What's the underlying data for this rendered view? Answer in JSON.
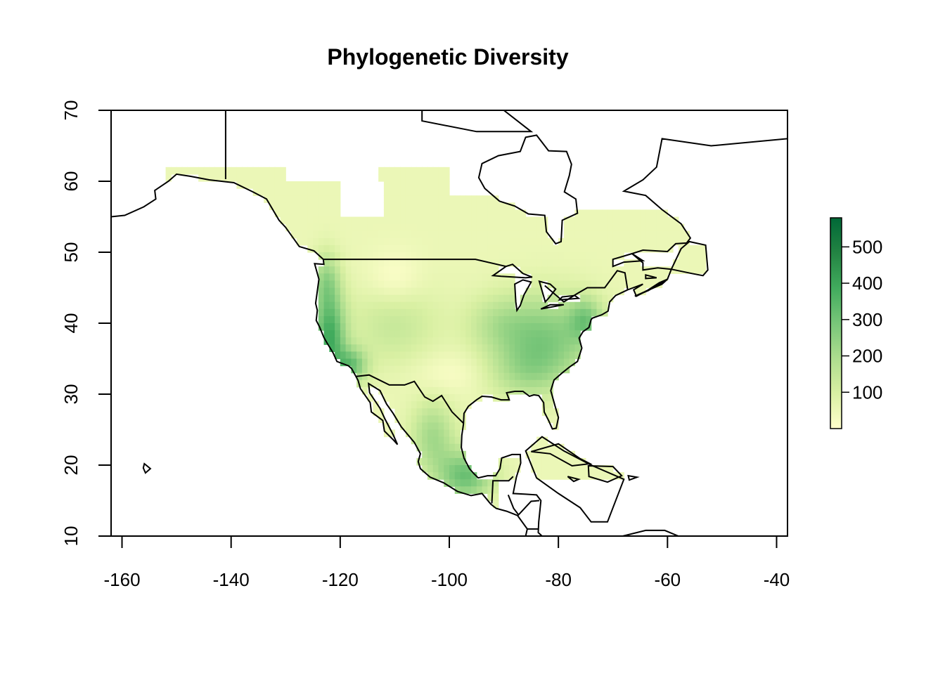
{
  "title": "Phylogenetic Diversity",
  "x_axis": {
    "ticks": [
      "-160",
      "-140",
      "-120",
      "-100",
      "-80",
      "-60",
      "-40"
    ]
  },
  "y_axis": {
    "ticks": [
      "10",
      "20",
      "30",
      "40",
      "50",
      "60",
      "70"
    ]
  },
  "legend": {
    "ticks": [
      "100",
      "200",
      "300",
      "400",
      "500"
    ],
    "min": 0,
    "max": 580,
    "colors": [
      "#ffffcc",
      "#d9f0a3",
      "#addd8e",
      "#78c679",
      "#41ab5d",
      "#238443",
      "#006837"
    ]
  },
  "map": {
    "lon_range": [
      -162,
      -38
    ],
    "lat_range": [
      10,
      70
    ],
    "border_color": "#000000"
  }
}
